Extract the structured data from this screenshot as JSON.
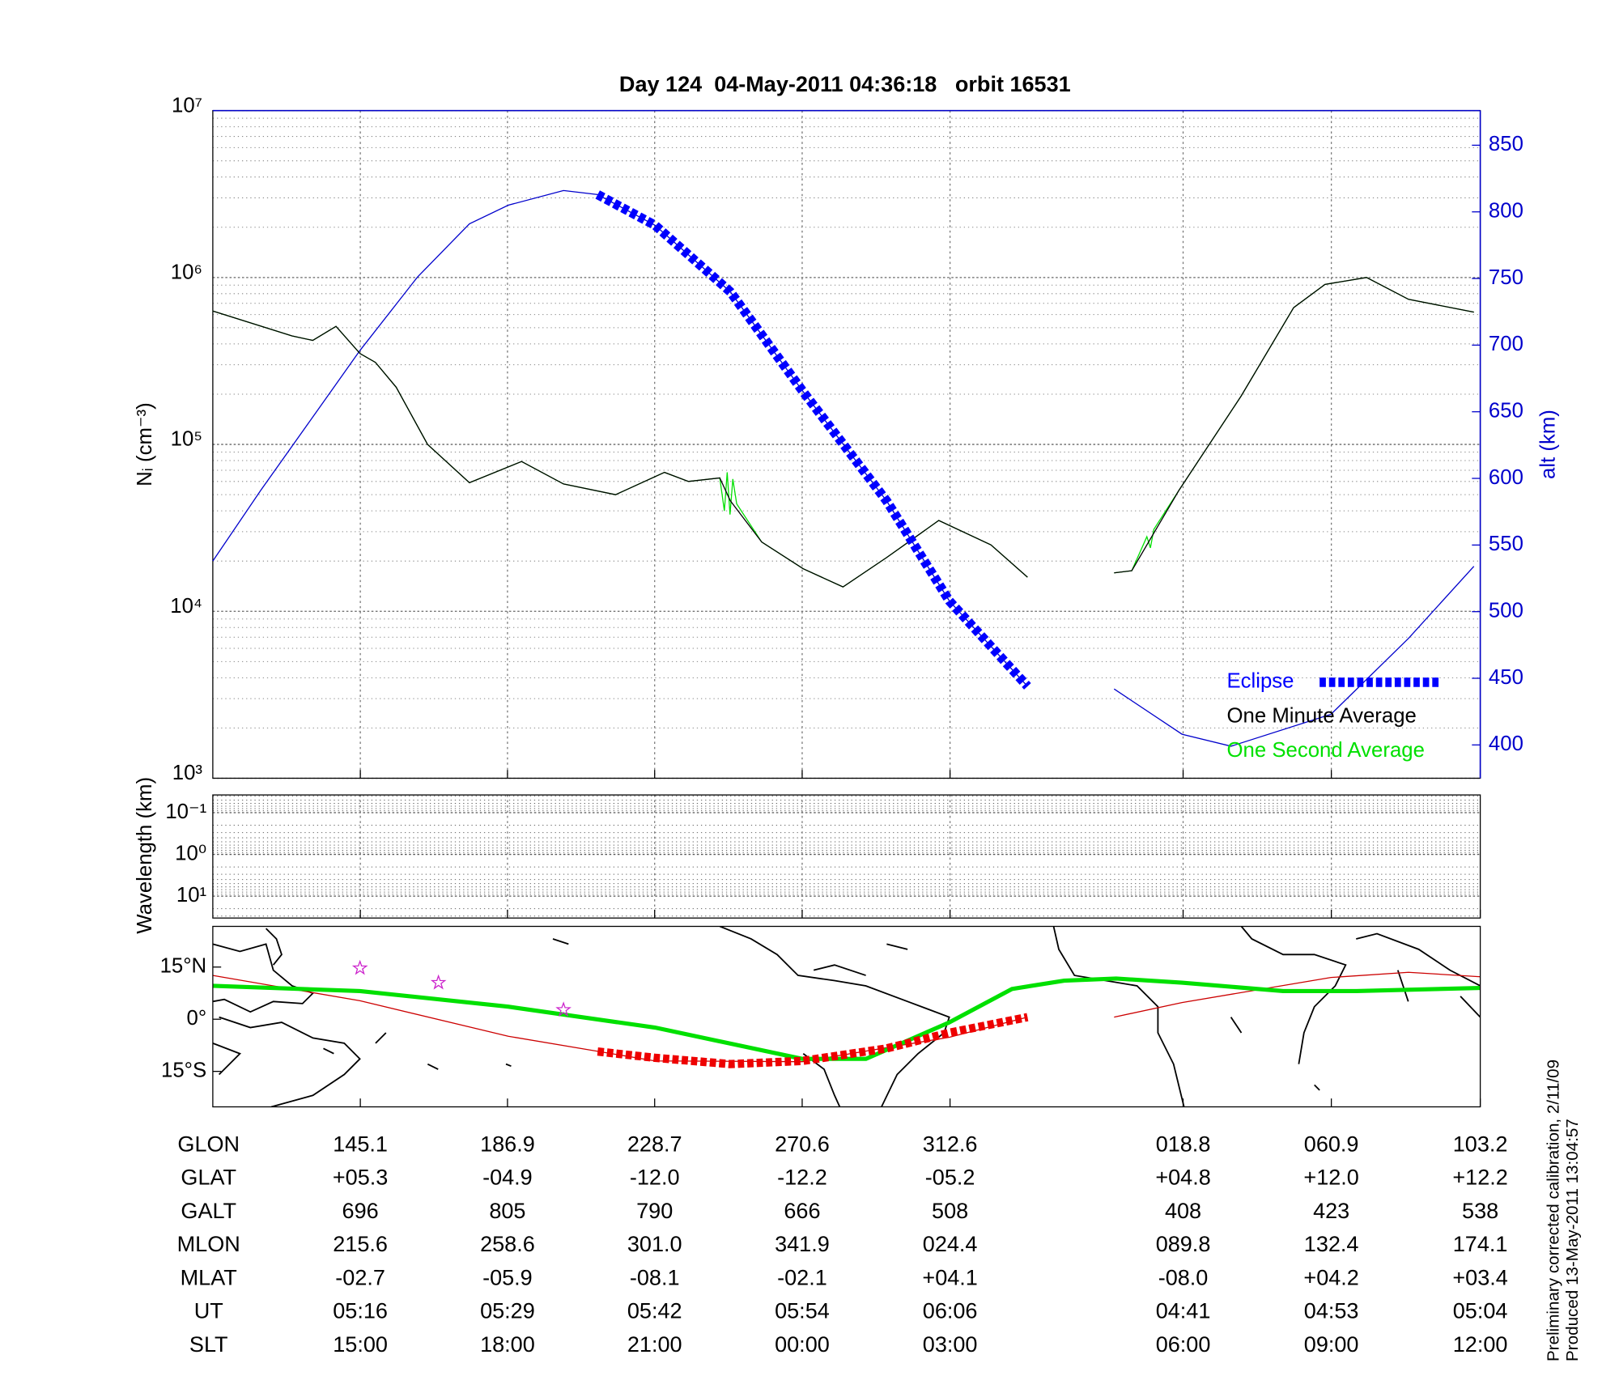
{
  "chart_data": [
    {
      "type": "line",
      "title": "Day 124  04-May-2011 04:36:18   orbit 16531",
      "ylabel": "Nᵢ (cm⁻³)",
      "y2label": "alt (km)",
      "log": true,
      "grid": true,
      "legend": "lower right",
      "xlim": [
        103.2,
        463.2
      ],
      "xticks": [
        145.1,
        186.9,
        228.7,
        270.6,
        312.6,
        {
          "value": 378.8,
          "label": "018.8"
        },
        {
          "value": 420.9,
          "label": "060.9"
        },
        {
          "value": 463.2,
          "label": "103.2"
        }
      ],
      "ylim": [
        1000,
        10000000
      ],
      "yticks": [
        {
          "value": 1000,
          "label": "10³"
        },
        {
          "value": 10000,
          "label": "10⁴"
        },
        {
          "value": 100000,
          "label": "10⁵"
        },
        {
          "value": 1000000,
          "label": "10⁶"
        },
        {
          "value": 10000000,
          "label": "10⁷"
        }
      ],
      "y2lim": [
        375,
        876
      ],
      "y2ticks": [
        400,
        450,
        500,
        550,
        600,
        650,
        700,
        750,
        800,
        850
      ],
      "series": [
        {
          "color": "#0000cc",
          "axis": "y2",
          "x": [
            103.2,
            116.8,
            131.6,
            145.0,
            161.3,
            176.1,
            187.1,
            202.8,
            212.5,
            228.8,
            250.2,
            270.6,
            294.6,
            312.4,
            334.6,
            347.0,
            359.2,
            378.5,
            392.4,
            420.8,
            442.8,
            461.4
          ],
          "values": [
            538,
            591,
            646,
            696,
            751,
            791,
            805,
            816,
            813,
            790,
            740,
            666,
            583,
            508,
            444,
            null,
            442,
            408,
            399,
            423,
            480,
            534
          ]
        },
        {
          "name": "One Second Average",
          "color": "#00e000",
          "x": [
            103.2,
            125.7,
            131.6,
            138.2,
            145.0,
            149.4,
            155.3,
            164.2,
            176.1,
            190.9,
            202.8,
            217.6,
            231.5,
            238.3,
            247.2,
            248.5,
            249.3,
            250.1,
            250.9,
            252.0,
            259.1,
            270.9,
            282.2,
            294.6,
            309.4,
            324.2,
            334.6,
            347.0,
            359.2,
            364.2,
            368.5,
            369.5,
            370.5,
            377.6,
            395.3,
            410.2,
            419.1,
            430.9,
            442.8,
            461.4
          ],
          "values": [
            630000,
            447000,
            420000,
            510000,
            350000,
            310000,
            220000,
            100000,
            59000,
            79000,
            58000,
            50000,
            68000,
            60000,
            63000,
            40000,
            68000,
            38000,
            62000,
            44000,
            26000,
            18000,
            14000,
            21000,
            35000,
            25000,
            16000,
            null,
            17000,
            17500,
            28000,
            24000,
            31000,
            53000,
            195000,
            660000,
            910000,
            1000000,
            740000,
            620000
          ]
        },
        {
          "name": "One Minute Average",
          "color": "#000000",
          "x": [
            103.2,
            125.7,
            131.6,
            138.2,
            145.0,
            149.4,
            155.3,
            164.2,
            176.1,
            190.9,
            202.8,
            217.6,
            231.5,
            238.3,
            247.2,
            250.2,
            259.1,
            270.9,
            282.2,
            294.6,
            309.4,
            324.2,
            334.6,
            347.0,
            359.2,
            364.2,
            377.6,
            395.3,
            410.2,
            419.1,
            430.9,
            442.8,
            461.4
          ],
          "values": [
            630000,
            447000,
            420000,
            510000,
            350000,
            310000,
            220000,
            100000,
            59000,
            79000,
            58000,
            50000,
            68000,
            60000,
            63000,
            46000,
            26000,
            18000,
            14000,
            21000,
            35000,
            25000,
            16000,
            null,
            17000,
            17500,
            53000,
            195000,
            660000,
            910000,
            1000000,
            740000,
            620000
          ]
        },
        {
          "name": "Eclipse",
          "color": "#0000ff",
          "axis": "y2",
          "style": "dashed",
          "x": [
            212.5,
            228.8,
            250.2,
            270.6,
            294.6,
            312.4,
            334.6
          ],
          "values": [
            813,
            790,
            740,
            666,
            583,
            508,
            444
          ]
        }
      ]
    },
    {
      "type": "spectrogram",
      "ylabel": "Wavelength (km)",
      "log": true,
      "invert": true,
      "grid": true,
      "ylim": [
        0.0376,
        33.5
      ],
      "yticks": [
        {
          "value": 0.1,
          "label": "10⁻¹"
        },
        {
          "value": 1,
          "label": "10⁰"
        },
        {
          "value": 10,
          "label": "10¹"
        }
      ]
    },
    {
      "type": "map",
      "ylim": [
        -25.2,
        26.7
      ],
      "yticks": [
        {
          "value": 15,
          "label": "15°N"
        },
        {
          "value": 0,
          "label": "0°"
        },
        {
          "value": -15,
          "label": "15°S"
        }
      ],
      "series": [
        {
          "color": "#cc0000",
          "x": [
            103.2,
            145.0,
            187.1,
            228.8,
            270.6,
            312.4,
            334.6,
            347.0,
            359.2,
            378.5,
            420.8,
            442.8,
            463.2
          ],
          "values": [
            12.6,
            5.3,
            -4.9,
            -12.0,
            -12.2,
            -5.2,
            0.6,
            null,
            0.6,
            4.8,
            12.0,
            13.5,
            12.2
          ]
        },
        {
          "color": "#00e000",
          "style": "thick",
          "x": [
            103.2,
            145.0,
            187.1,
            228.8,
            270.6,
            288.7,
            312.4,
            330.2,
            345.0,
            359.8,
            378.5,
            407.2,
            428.0,
            463.2
          ],
          "values": [
            9.6,
            8.1,
            3.6,
            -2.4,
            -11.4,
            -11.4,
            -0.9,
            8.7,
            11.1,
            11.7,
            10.5,
            8.1,
            8.1,
            9.0
          ]
        },
        {
          "color": "#ee0000",
          "style": "dashed",
          "x": [
            212.5,
            228.8,
            250.2,
            270.6,
            294.6,
            312.4,
            334.6
          ],
          "values": [
            -9.3,
            -11.1,
            -12.9,
            -12.0,
            -8.4,
            -3.9,
            0.6
          ]
        },
        {
          "color": "#cc22cc",
          "marker": "star",
          "x": [
            145.0,
            167.3,
            202.8
          ],
          "values": [
            14.7,
            10.5,
            2.7
          ]
        }
      ]
    }
  ],
  "table": {
    "rows": [
      {
        "label": "GLON"
      },
      {
        "label": "GLAT",
        "values": [
          "+05.3",
          "-04.9",
          "-12.0",
          "-12.2",
          "-05.2",
          "+04.8",
          "+12.0",
          "+12.2"
        ]
      },
      {
        "label": "GALT",
        "values": [
          "696",
          "805",
          "790",
          "666",
          "508",
          "408",
          "423",
          "538"
        ]
      },
      {
        "label": "MLON",
        "values": [
          "215.6",
          "258.6",
          "301.0",
          "341.9",
          "024.4",
          "089.8",
          "132.4",
          "174.1"
        ]
      },
      {
        "label": "MLAT",
        "values": [
          "-02.7",
          "-05.9",
          "-08.1",
          "-02.1",
          "+04.1",
          "-08.0",
          "+04.2",
          "+03.4"
        ]
      },
      {
        "label": "UT",
        "values": [
          "05:16",
          "05:29",
          "05:42",
          "05:54",
          "06:06",
          "04:41",
          "04:53",
          "05:04"
        ]
      },
      {
        "label": "SLT",
        "values": [
          "15:00",
          "18:00",
          "21:00",
          "00:00",
          "03:00",
          "06:00",
          "09:00",
          "12:00"
        ]
      }
    ]
  },
  "notes": [
    "Preliminary corrected calibration, 2/11/09",
    "Produced 13-May-2011 13:04:57"
  ]
}
